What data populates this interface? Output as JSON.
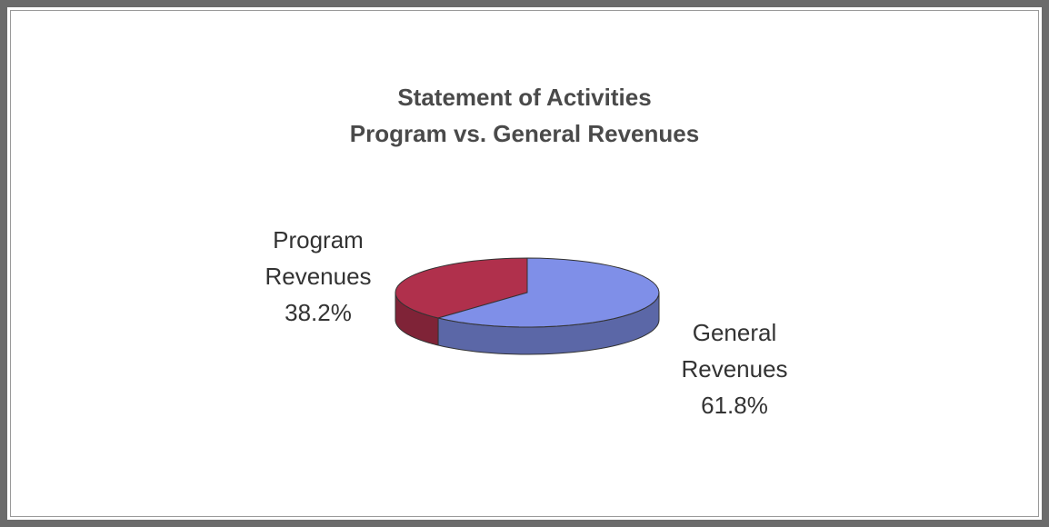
{
  "chart_data": {
    "type": "pie",
    "title": "Statement of Activities",
    "subtitle": "Program vs. General Revenues",
    "categories": [
      "Program Revenues",
      "General Revenues"
    ],
    "values": [
      38.2,
      61.8
    ],
    "value_labels": [
      "38.2%",
      "61.8%"
    ],
    "colors": [
      "#b0304c",
      "#7f8fe8"
    ],
    "three_d": true
  }
}
